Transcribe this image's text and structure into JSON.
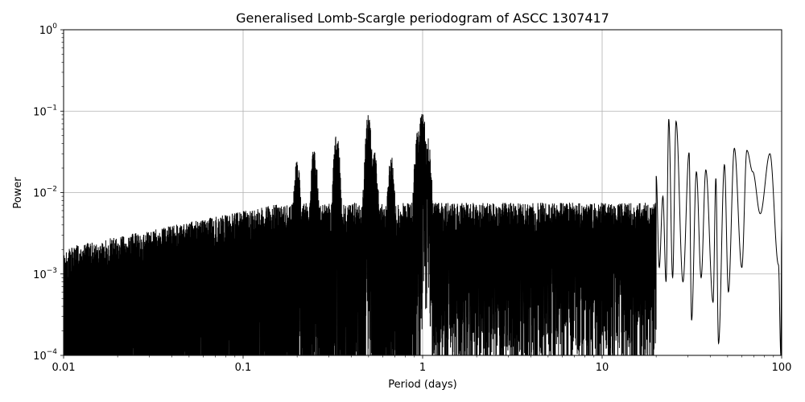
{
  "chart_data": {
    "type": "line",
    "title": "Generalised Lomb-Scargle periodogram of ASCC 1307417",
    "xlabel": "Period (days)",
    "ylabel": "Power",
    "xscale": "log",
    "yscale": "log",
    "xlim": [
      0.01,
      100
    ],
    "ylim": [
      0.0001,
      1
    ],
    "grid": true,
    "x_ticks": [
      {
        "value": 0.01,
        "label": "0.01"
      },
      {
        "value": 0.1,
        "label": "0.1"
      },
      {
        "value": 1,
        "label": "1"
      },
      {
        "value": 10,
        "label": "10"
      },
      {
        "value": 100,
        "label": "100"
      }
    ],
    "y_ticks": [
      {
        "value": 1,
        "base": "10",
        "exp": "0"
      },
      {
        "value": 0.1,
        "base": "10",
        "exp": "−1"
      },
      {
        "value": 0.01,
        "base": "10",
        "exp": "−2"
      },
      {
        "value": 0.001,
        "base": "10",
        "exp": "−3"
      },
      {
        "value": 0.0001,
        "base": "10",
        "exp": "−4"
      }
    ],
    "line_color": "#000000",
    "grid_color": "#b0b0b0",
    "series": [
      {
        "peaks": [
          {
            "x": 0.2,
            "y": 0.025
          },
          {
            "x": 0.249,
            "y": 0.037
          },
          {
            "x": 0.332,
            "y": 0.055
          },
          {
            "x": 0.498,
            "y": 0.09
          },
          {
            "x": 0.54,
            "y": 0.035
          },
          {
            "x": 0.667,
            "y": 0.03
          },
          {
            "x": 0.997,
            "y": 0.11
          },
          {
            "x": 0.94,
            "y": 0.06
          },
          {
            "x": 1.07,
            "y": 0.05
          },
          {
            "x": 23.5,
            "y": 0.08
          },
          {
            "x": 25.8,
            "y": 0.075
          },
          {
            "x": 30.5,
            "y": 0.031
          },
          {
            "x": 37.8,
            "y": 0.019
          },
          {
            "x": 48.0,
            "y": 0.022
          },
          {
            "x": 54.5,
            "y": 0.035
          },
          {
            "x": 64.0,
            "y": 0.033
          },
          {
            "x": 86.0,
            "y": 0.03
          }
        ],
        "lf_curve": [
          {
            "x": 20.0,
            "y": 0.016
          },
          {
            "x": 20.8,
            "y": 0.0012
          },
          {
            "x": 21.8,
            "y": 0.009
          },
          {
            "x": 22.7,
            "y": 0.0008
          },
          {
            "x": 23.5,
            "y": 0.08
          },
          {
            "x": 24.7,
            "y": 0.0009
          },
          {
            "x": 25.8,
            "y": 0.075
          },
          {
            "x": 28.2,
            "y": 0.0008
          },
          {
            "x": 30.5,
            "y": 0.031
          },
          {
            "x": 31.5,
            "y": 0.00027
          },
          {
            "x": 33.5,
            "y": 0.018
          },
          {
            "x": 35.6,
            "y": 0.0009
          },
          {
            "x": 37.8,
            "y": 0.019
          },
          {
            "x": 41.5,
            "y": 0.00045
          },
          {
            "x": 43.0,
            "y": 0.015
          },
          {
            "x": 44.5,
            "y": 0.00014
          },
          {
            "x": 48.0,
            "y": 0.022
          },
          {
            "x": 50.5,
            "y": 0.0006
          },
          {
            "x": 54.5,
            "y": 0.035
          },
          {
            "x": 60.0,
            "y": 0.0012
          },
          {
            "x": 64.0,
            "y": 0.033
          },
          {
            "x": 69.0,
            "y": 0.018
          },
          {
            "x": 76.0,
            "y": 0.0055
          },
          {
            "x": 86.0,
            "y": 0.03
          },
          {
            "x": 96.0,
            "y": 0.0013
          },
          {
            "x": 99.0,
            "y": 0.0001
          },
          {
            "x": 100.0,
            "y": 0.0038
          }
        ]
      }
    ]
  }
}
